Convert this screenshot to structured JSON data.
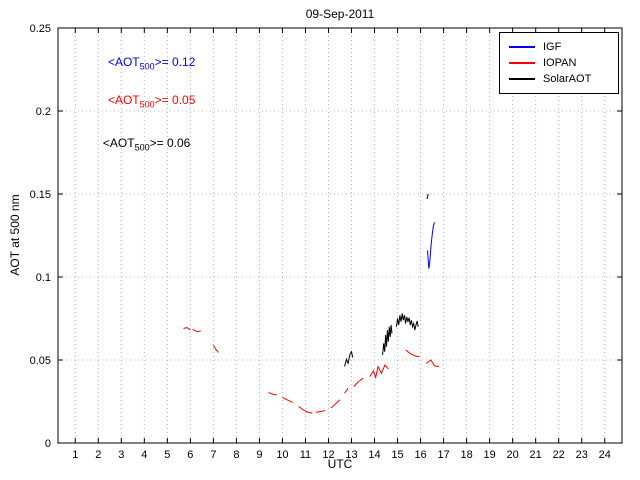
{
  "chart_data": {
    "type": "line",
    "title": "09-Sep-2011",
    "xlabel": "UTC",
    "ylabel": "AOT at 500 nm",
    "xlim": [
      0.25,
      24.75
    ],
    "ylim": [
      0,
      0.25
    ],
    "xticks": [
      1,
      2,
      3,
      4,
      5,
      6,
      7,
      8,
      9,
      10,
      11,
      12,
      13,
      14,
      15,
      16,
      17,
      18,
      19,
      20,
      21,
      22,
      23,
      24
    ],
    "xtick_labels": [
      "1",
      "2",
      "3",
      "4",
      "5",
      "6",
      "7",
      "8",
      "9",
      "10",
      "11",
      "12",
      "13",
      "14",
      "15",
      "16",
      "17",
      "18",
      "19",
      "20",
      "21",
      "22",
      "23",
      "24"
    ],
    "yticks": [
      0,
      0.05,
      0.1,
      0.15,
      0.2,
      0.25
    ],
    "ytick_labels": [
      "0",
      "0.05",
      "0.1",
      "0.15",
      "0.2",
      "0.25"
    ],
    "grid": true,
    "grid_color": "#b5b5b5",
    "axis_color": "#000000",
    "legend": {
      "position": "top-right"
    },
    "series": [
      {
        "name": "IGF",
        "color": "#0000ee",
        "segments": [
          [
            [
              16.3,
              0.116
            ],
            [
              16.33,
              0.11
            ],
            [
              16.36,
              0.105
            ],
            [
              16.4,
              0.109
            ],
            [
              16.43,
              0.115
            ],
            [
              16.47,
              0.121
            ],
            [
              16.51,
              0.126
            ],
            [
              16.55,
              0.13
            ],
            [
              16.6,
              0.133
            ]
          ]
        ]
      },
      {
        "name": "IOPAN",
        "color": "#ff0000",
        "segments": [
          [
            [
              5.7,
              0.069
            ],
            [
              5.85,
              0.0695
            ],
            [
              6.0,
              0.068
            ]
          ],
          [
            [
              6.1,
              0.0685
            ],
            [
              6.3,
              0.067
            ],
            [
              6.45,
              0.0675
            ]
          ],
          [
            [
              7.0,
              0.059
            ],
            [
              7.1,
              0.0565
            ],
            [
              7.22,
              0.0545
            ]
          ],
          [
            [
              9.4,
              0.0305
            ],
            [
              9.55,
              0.0295
            ],
            [
              9.75,
              0.029
            ]
          ],
          [
            [
              10.0,
              0.0275
            ],
            [
              10.2,
              0.026
            ],
            [
              10.45,
              0.0245
            ]
          ],
          [
            [
              10.7,
              0.022
            ],
            [
              10.9,
              0.02
            ],
            [
              11.1,
              0.0185
            ],
            [
              11.3,
              0.018
            ]
          ],
          [
            [
              11.45,
              0.0185
            ],
            [
              11.65,
              0.019
            ],
            [
              11.85,
              0.0195
            ]
          ],
          [
            [
              12.1,
              0.021
            ],
            [
              12.3,
              0.0235
            ],
            [
              12.5,
              0.026
            ]
          ],
          [
            [
              12.7,
              0.03
            ],
            [
              12.85,
              0.033
            ]
          ],
          [
            [
              13.1,
              0.034
            ],
            [
              13.3,
              0.037
            ],
            [
              13.5,
              0.039
            ]
          ],
          [
            [
              13.8,
              0.04
            ],
            [
              13.95,
              0.0435
            ],
            [
              14.05,
              0.0395
            ],
            [
              14.15,
              0.046
            ],
            [
              14.3,
              0.042
            ],
            [
              14.45,
              0.047
            ],
            [
              14.6,
              0.0445
            ]
          ],
          [
            [
              15.35,
              0.056
            ],
            [
              15.55,
              0.054
            ],
            [
              15.75,
              0.0525
            ],
            [
              15.95,
              0.052
            ]
          ],
          [
            [
              16.25,
              0.048
            ],
            [
              16.45,
              0.05
            ],
            [
              16.6,
              0.0465
            ],
            [
              16.8,
              0.046
            ]
          ]
        ]
      },
      {
        "name": "SolarAOT",
        "color": "#000000",
        "segments": [
          [
            [
              12.7,
              0.046
            ],
            [
              12.78,
              0.0505
            ],
            [
              12.85,
              0.048
            ],
            [
              12.92,
              0.053
            ],
            [
              13.0,
              0.055
            ],
            [
              13.05,
              0.0515
            ]
          ],
          [
            [
              14.35,
              0.053
            ],
            [
              14.4,
              0.06
            ],
            [
              14.44,
              0.055
            ],
            [
              14.48,
              0.065
            ],
            [
              14.52,
              0.058
            ],
            [
              14.56,
              0.068
            ],
            [
              14.6,
              0.061
            ],
            [
              14.64,
              0.07
            ],
            [
              14.68,
              0.064
            ],
            [
              14.72,
              0.071
            ],
            [
              14.76,
              0.066
            ]
          ],
          [
            [
              14.95,
              0.07
            ],
            [
              15.0,
              0.075
            ],
            [
              15.05,
              0.071
            ],
            [
              15.1,
              0.077
            ],
            [
              15.15,
              0.073
            ],
            [
              15.2,
              0.078
            ],
            [
              15.25,
              0.074
            ],
            [
              15.3,
              0.077
            ],
            [
              15.35,
              0.072
            ],
            [
              15.4,
              0.076
            ],
            [
              15.45,
              0.073
            ],
            [
              15.5,
              0.0755
            ],
            [
              15.55,
              0.071
            ],
            [
              15.6,
              0.074
            ],
            [
              15.65,
              0.07
            ],
            [
              15.7,
              0.072
            ],
            [
              15.75,
              0.068
            ],
            [
              15.8,
              0.071
            ],
            [
              15.85,
              0.0735
            ],
            [
              15.9,
              0.07
            ]
          ],
          [
            [
              16.28,
              0.147
            ],
            [
              16.33,
              0.15
            ]
          ]
        ]
      }
    ],
    "annotations": [
      {
        "pre": "<AOT",
        "sub": "500",
        "post": ">= 0.12",
        "color": "#0000ee",
        "x": 2.42,
        "y": 0.229
      },
      {
        "pre": "<AOT",
        "sub": "500",
        "post": ">= 0.05",
        "color": "#ff0000",
        "x": 2.42,
        "y": 0.206
      },
      {
        "pre": "<AOT",
        "sub": "500",
        "post": ">= 0.06",
        "color": "#000000",
        "x": 2.2,
        "y": 0.18
      }
    ]
  }
}
